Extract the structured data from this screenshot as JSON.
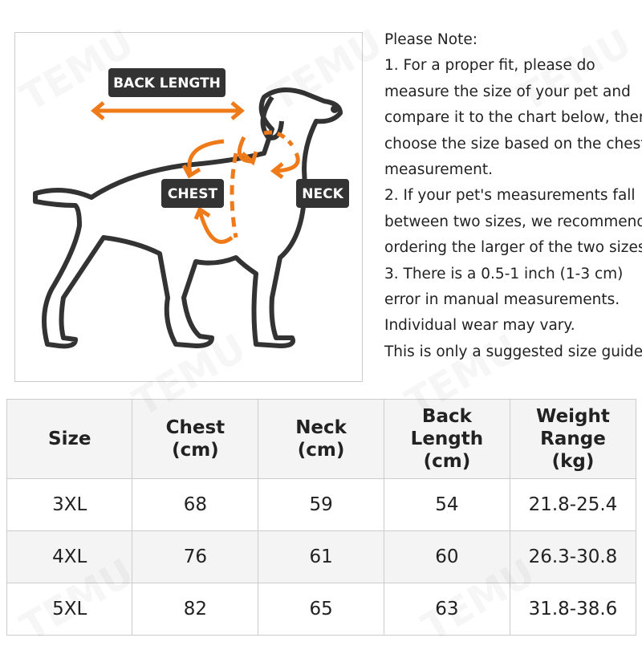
{
  "diagram": {
    "labels": {
      "back_length": "BACK LENGTH",
      "chest": "CHEST",
      "neck": "NECK"
    },
    "watermark": "TEMU"
  },
  "note": {
    "lines": [
      "Please Note:",
      "1. For a proper fit, please do",
      "measure the size of your pet and",
      "compare it to the chart below, then",
      "choose the size based on the chest",
      "measurement.",
      "2. If your pet's measurements fall",
      "between two sizes, we recommend",
      "ordering the larger of the two sizes.",
      "3. There is a 0.5-1 inch (1-3 cm)",
      "error in manual measurements.",
      "Individual wear may vary.",
      "This is only a suggested size guide."
    ]
  },
  "table": {
    "header": [
      "Size",
      "Chest\n(cm)",
      "Neck\n(cm)",
      "Back\nLength\n(cm)",
      "Weight\nRange\n(kg)"
    ],
    "rows": [
      [
        "3XL",
        "68",
        "59",
        "54",
        "21.8-25.4"
      ],
      [
        "4XL",
        "76",
        "61",
        "60",
        "26.3-30.8"
      ],
      [
        "5XL",
        "82",
        "65",
        "63",
        "31.8-38.6"
      ]
    ]
  }
}
